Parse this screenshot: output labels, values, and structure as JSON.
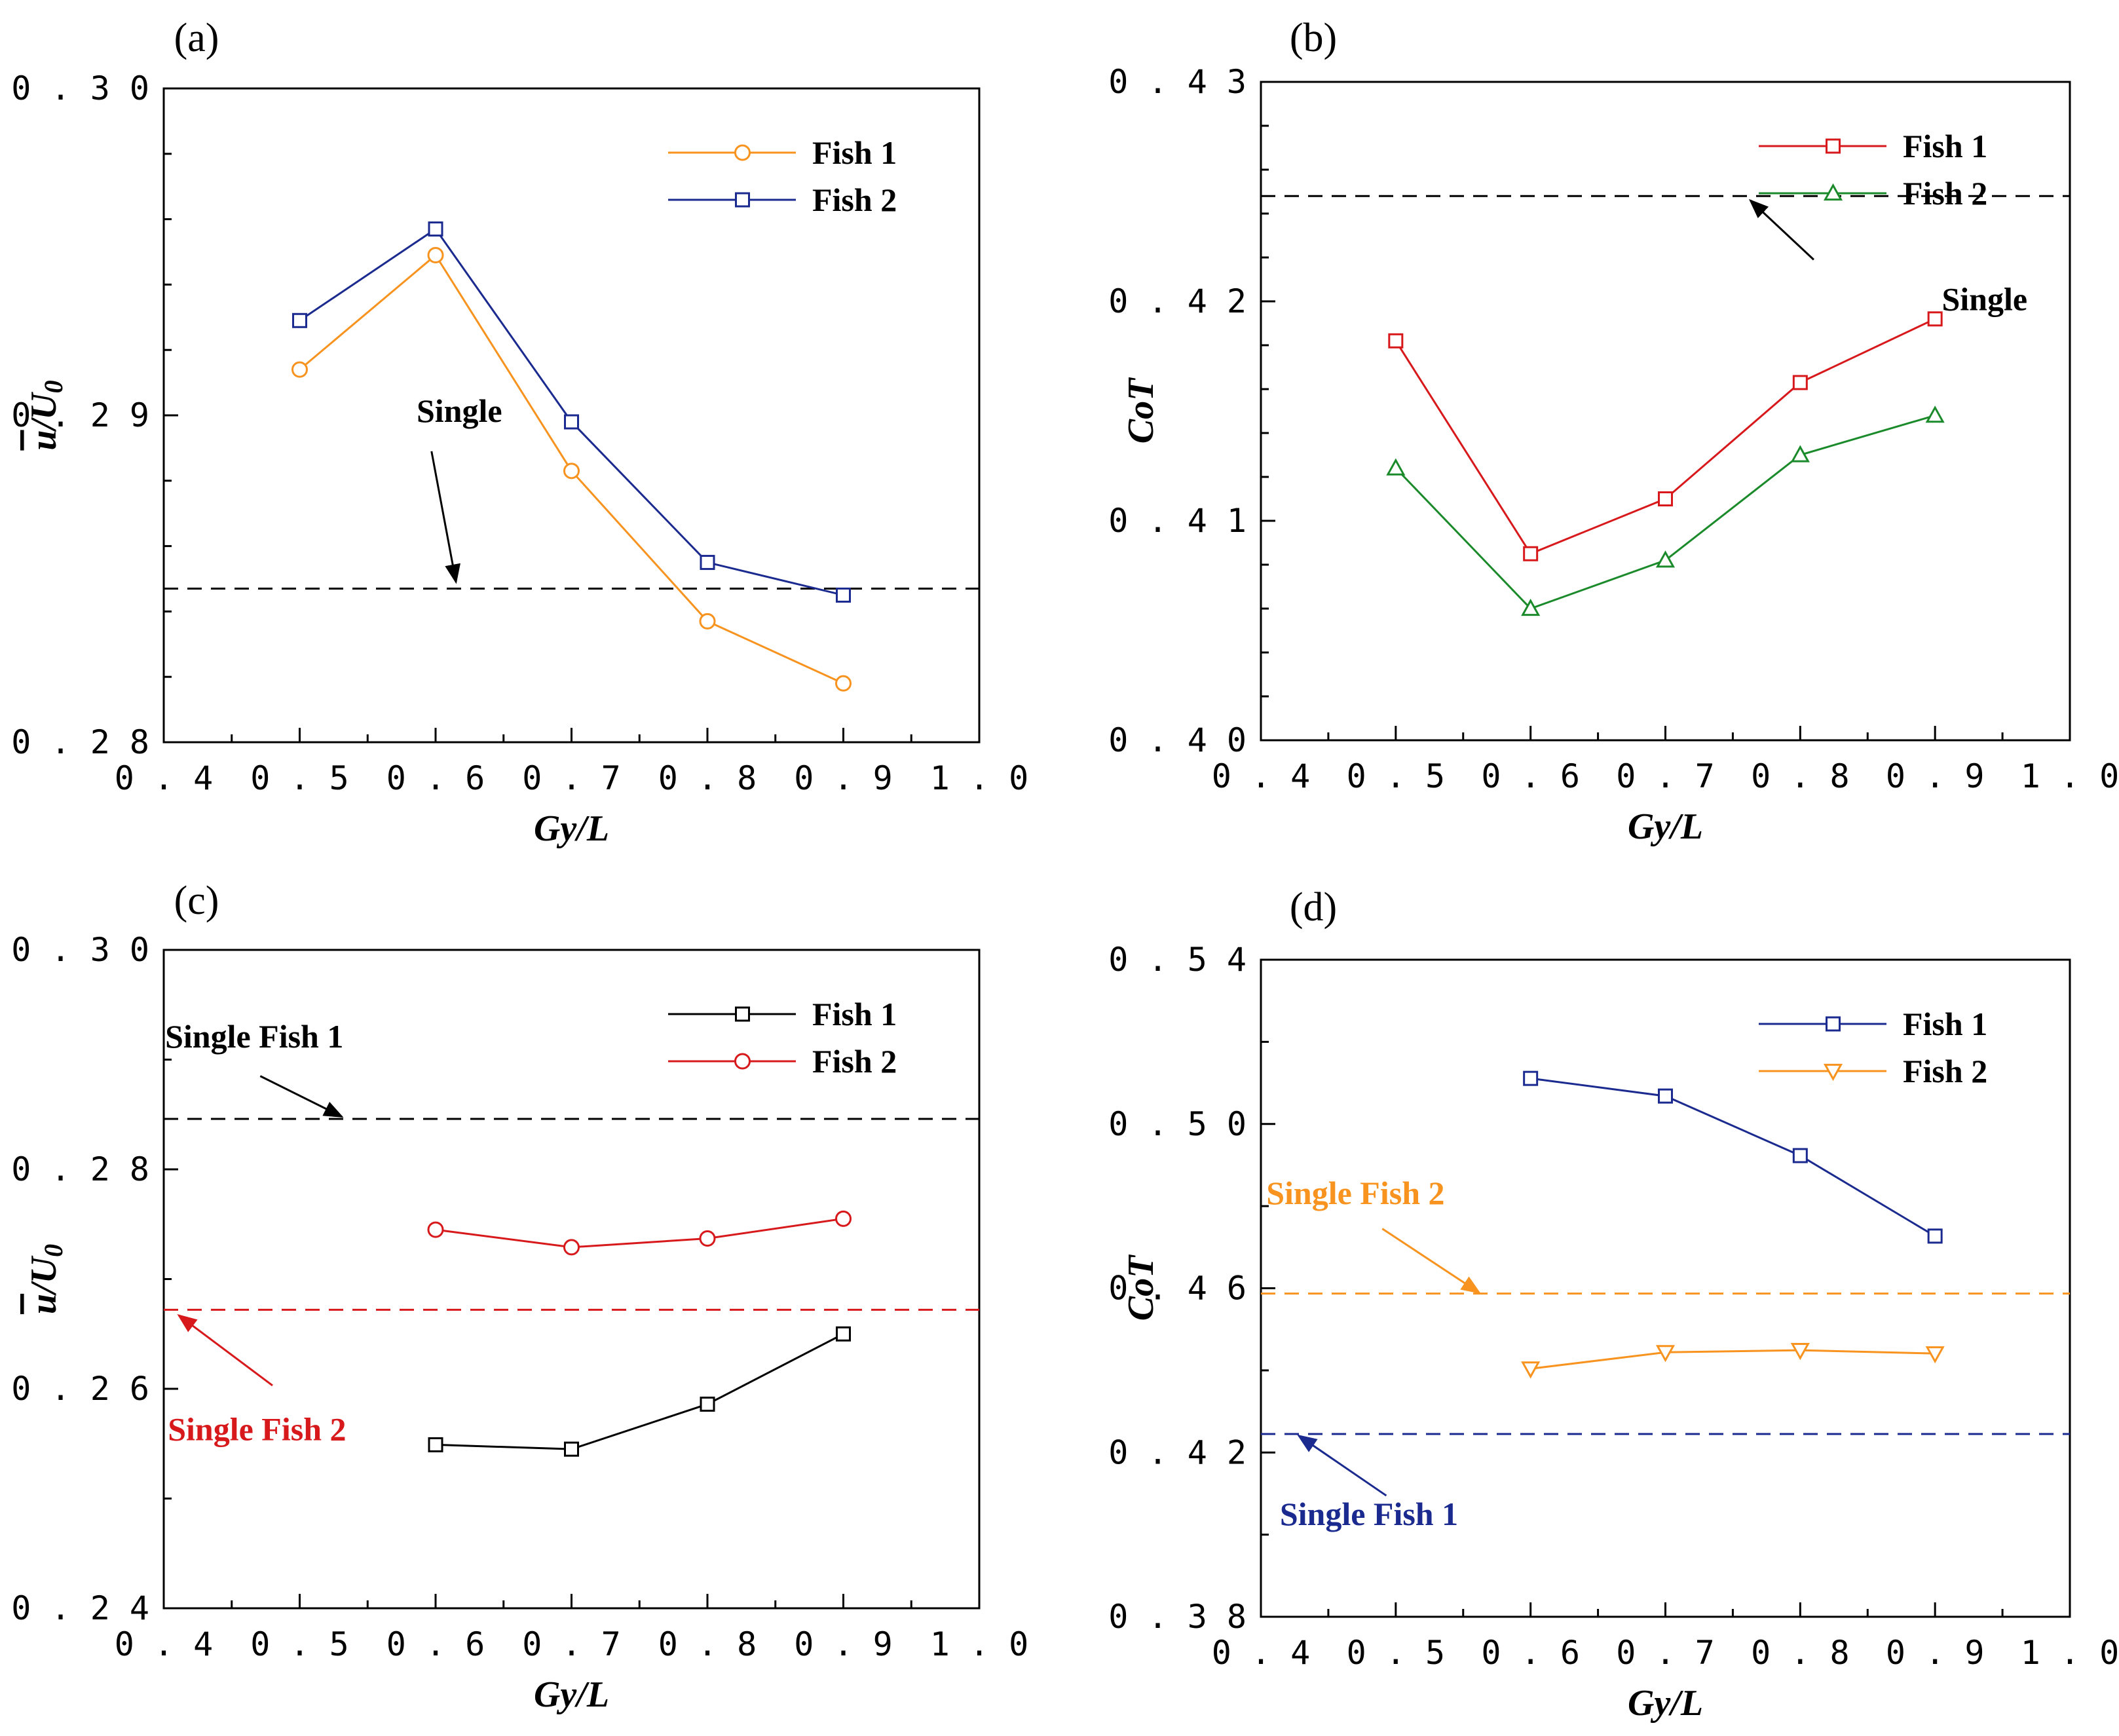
{
  "chart_data": [
    {
      "panel": "(a)",
      "type": "line",
      "xlabel": "Gy/L",
      "ylabel": "u/U0",
      "ylabel_parts": {
        "main": "u",
        "rest": "/U",
        "sub": "0",
        "overbar": true
      },
      "xlim": [
        0.4,
        1.0
      ],
      "ylim": [
        0.28,
        0.3
      ],
      "xticks": [
        0.4,
        0.5,
        0.6,
        0.7,
        0.8,
        0.9,
        1.0
      ],
      "xtick_labels": [
        "0.4",
        "0.5",
        "0.6",
        "0.7",
        "0.8",
        "0.9",
        "1.0"
      ],
      "yticks": [
        0.28,
        0.29,
        0.3
      ],
      "ytick_labels": [
        "0.28",
        "0.29",
        "0.30"
      ],
      "yminor": 4,
      "xminor": 1,
      "legend_position": "top-right",
      "series": [
        {
          "name": "Fish 1",
          "color": "#f7931e",
          "marker": "circle",
          "x": [
            0.5,
            0.6,
            0.7,
            0.8,
            0.9
          ],
          "y": [
            0.2914,
            0.2949,
            0.2883,
            0.2837,
            0.2818
          ]
        },
        {
          "name": "Fish 2",
          "color": "#1b2a8f",
          "marker": "square",
          "x": [
            0.5,
            0.6,
            0.7,
            0.8,
            0.9
          ],
          "y": [
            0.2929,
            0.2957,
            0.2898,
            0.2855,
            0.2845
          ]
        }
      ],
      "reference_lines": [
        {
          "label": "Single",
          "value": 0.2847,
          "color": "#000000"
        }
      ],
      "annotations": [
        {
          "text": "Single",
          "color": "#000000",
          "text_x": 0.586,
          "text_y": 0.2898,
          "arrow_from": [
            0.597,
            0.2889
          ],
          "arrow_to": [
            0.615,
            0.2849
          ]
        }
      ]
    },
    {
      "panel": "(b)",
      "type": "line",
      "xlabel": "Gy/L",
      "ylabel": "CoT",
      "xlim": [
        0.4,
        1.0
      ],
      "ylim": [
        0.4,
        0.43
      ],
      "xticks": [
        0.4,
        0.5,
        0.6,
        0.7,
        0.8,
        0.9,
        1.0
      ],
      "xtick_labels": [
        "0.4",
        "0.5",
        "0.6",
        "0.7",
        "0.8",
        "0.9",
        "1.0"
      ],
      "yticks": [
        0.4,
        0.41,
        0.42,
        0.43
      ],
      "ytick_labels": [
        "0.40",
        "0.41",
        "0.42",
        "0.43"
      ],
      "yminor": 4,
      "xminor": 1,
      "legend_position": "top-right",
      "series": [
        {
          "name": "Fish 1",
          "color": "#d7191c",
          "marker": "square",
          "x": [
            0.5,
            0.6,
            0.7,
            0.8,
            0.9
          ],
          "y": [
            0.4182,
            0.4085,
            0.411,
            0.4163,
            0.4192
          ]
        },
        {
          "name": "Fish 2",
          "color": "#1a8a2a",
          "marker": "triangle-up",
          "x": [
            0.5,
            0.6,
            0.7,
            0.8,
            0.9
          ],
          "y": [
            0.4124,
            0.406,
            0.4082,
            0.413,
            0.4148
          ]
        }
      ],
      "reference_lines": [
        {
          "label": "Single",
          "value": 0.4248,
          "color": "#000000"
        }
      ],
      "annotations": [
        {
          "text": "Single",
          "color": "#000000",
          "text_x": 0.905,
          "text_y": 0.4196,
          "arrow_from": [
            0.81,
            0.4219
          ],
          "arrow_to": [
            0.763,
            0.4246
          ]
        }
      ]
    },
    {
      "panel": "(c)",
      "type": "line",
      "xlabel": "Gy/L",
      "ylabel": "u/U0",
      "ylabel_parts": {
        "main": "u",
        "rest": "/U",
        "sub": "0",
        "overbar": true
      },
      "xlim": [
        0.4,
        1.0
      ],
      "ylim": [
        0.24,
        0.3
      ],
      "xticks": [
        0.4,
        0.5,
        0.6,
        0.7,
        0.8,
        0.9,
        1.0
      ],
      "xtick_labels": [
        "0.4",
        "0.5",
        "0.6",
        "0.7",
        "0.8",
        "0.9",
        "1.0"
      ],
      "yticks": [
        0.24,
        0.26,
        0.28,
        0.3
      ],
      "ytick_labels": [
        "0.24",
        "0.26",
        "0.28",
        "0.30"
      ],
      "yminor": 1,
      "xminor": 1,
      "legend_position": "top-right",
      "series": [
        {
          "name": "Fish 1",
          "color": "#000000",
          "marker": "square",
          "x": [
            0.6,
            0.7,
            0.8,
            0.9
          ],
          "y": [
            0.2549,
            0.2545,
            0.2586,
            0.265
          ]
        },
        {
          "name": "Fish 2",
          "color": "#d7191c",
          "marker": "circle",
          "x": [
            0.6,
            0.7,
            0.8,
            0.9
          ],
          "y": [
            0.2745,
            0.2729,
            0.2737,
            0.2755
          ]
        }
      ],
      "reference_lines": [
        {
          "label": "Single Fish 1",
          "value": 0.2846,
          "color": "#000000"
        },
        {
          "label": "Single Fish 2",
          "value": 0.2672,
          "color": "#d7191c"
        }
      ],
      "annotations": [
        {
          "text": "Single Fish 1",
          "color": "#000000",
          "text_x": 0.401,
          "text_y": 0.2911,
          "arrow_from": [
            0.471,
            0.2885
          ],
          "arrow_to": [
            0.531,
            0.2848
          ]
        },
        {
          "text": "Single Fish 2",
          "color": "#d7191c",
          "text_x": 0.403,
          "text_y": 0.2553,
          "arrow_from": [
            0.48,
            0.2603
          ],
          "arrow_to": [
            0.411,
            0.2667
          ]
        }
      ]
    },
    {
      "panel": "(d)",
      "type": "line",
      "xlabel": "Gy/L",
      "ylabel": "CoT",
      "xlim": [
        0.4,
        1.0
      ],
      "ylim": [
        0.38,
        0.54
      ],
      "xticks": [
        0.4,
        0.5,
        0.6,
        0.7,
        0.8,
        0.9,
        1.0
      ],
      "xtick_labels": [
        "0.4",
        "0.5",
        "0.6",
        "0.7",
        "0.8",
        "0.9",
        "1.0"
      ],
      "yticks": [
        0.38,
        0.42,
        0.46,
        0.5,
        0.54
      ],
      "ytick_labels": [
        "0.38",
        "0.42",
        "0.46",
        "0.50",
        "0.54"
      ],
      "yminor": 1,
      "xminor": 1,
      "legend_position": "top-right",
      "series": [
        {
          "name": "Fish 1",
          "color": "#1b2a8f",
          "marker": "square",
          "x": [
            0.6,
            0.7,
            0.8,
            0.9
          ],
          "y": [
            0.5111,
            0.5068,
            0.4923,
            0.4727
          ]
        },
        {
          "name": "Fish 2",
          "color": "#f7931e",
          "marker": "triangle-down",
          "x": [
            0.6,
            0.7,
            0.8,
            0.9
          ],
          "y": [
            0.4404,
            0.4444,
            0.4449,
            0.4441
          ]
        }
      ],
      "reference_lines": [
        {
          "label": "Single Fish 2",
          "value": 0.4587,
          "color": "#f7931e"
        },
        {
          "label": "Single Fish 1",
          "value": 0.4245,
          "color": "#1b2a8f"
        }
      ],
      "annotations": [
        {
          "text": "Single Fish 2",
          "color": "#f7931e",
          "text_x": 0.404,
          "text_y": 0.4805,
          "arrow_from": [
            0.49,
            0.4745
          ],
          "arrow_to": [
            0.562,
            0.4589
          ]
        },
        {
          "text": "Single Fish 1",
          "color": "#1b2a8f",
          "text_x": 0.414,
          "text_y": 0.4023,
          "arrow_from": [
            0.493,
            0.4095
          ],
          "arrow_to": [
            0.428,
            0.4241
          ]
        }
      ]
    }
  ]
}
